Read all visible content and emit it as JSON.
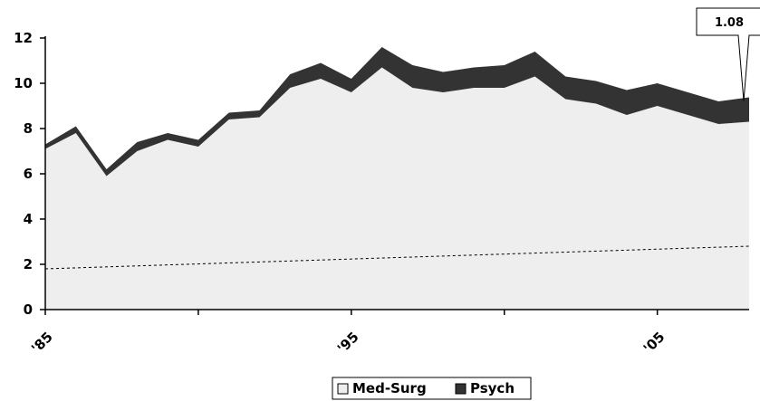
{
  "chart_data": {
    "type": "area",
    "stacked": true,
    "x_start_year": 1985,
    "x_end_year": 2008,
    "x": [
      1985,
      1986,
      1987,
      1988,
      1989,
      1990,
      1991,
      1992,
      1993,
      1994,
      1995,
      1996,
      1997,
      1998,
      1999,
      2000,
      2001,
      2002,
      2003,
      2004,
      2005,
      2006,
      2007,
      2008
    ],
    "series": [
      {
        "name": "Med-Surg",
        "color": "#eeeeee",
        "values": [
          7.1,
          7.8,
          5.9,
          7.0,
          7.5,
          7.2,
          8.4,
          8.5,
          9.8,
          10.2,
          9.6,
          10.7,
          9.8,
          9.6,
          9.8,
          9.8,
          10.3,
          9.3,
          9.1,
          8.6,
          9.0,
          8.6,
          8.2,
          8.3
        ]
      },
      {
        "name": "Psych",
        "color": "#333333",
        "values": [
          0.2,
          0.3,
          0.3,
          0.4,
          0.3,
          0.3,
          0.3,
          0.3,
          0.6,
          0.7,
          0.6,
          0.9,
          1.0,
          0.9,
          0.9,
          1.0,
          1.1,
          1.0,
          1.0,
          1.1,
          1.0,
          1.0,
          1.0,
          1.08
        ]
      }
    ],
    "trend_line": {
      "style": "dashed",
      "start": 1.8,
      "end": 2.8
    },
    "ylim": [
      0,
      12
    ],
    "yticks": [
      0,
      2,
      4,
      6,
      8,
      10,
      12
    ],
    "xtick_labels": [
      {
        "year": 1985,
        "label": "'85"
      },
      {
        "year": 1995,
        "label": "'95"
      },
      {
        "year": 2005,
        "label": "'05"
      }
    ],
    "callout": {
      "text": "1.08",
      "year": 2008
    },
    "legend": {
      "position": "bottom-center",
      "items": [
        "Med-Surg",
        "Psych"
      ]
    }
  }
}
